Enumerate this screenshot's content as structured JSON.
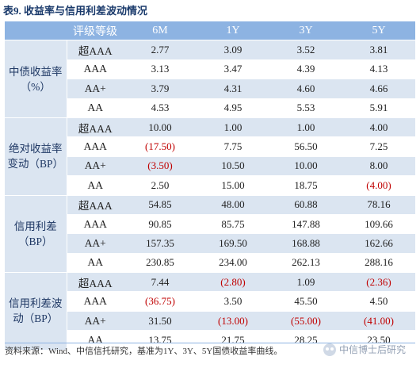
{
  "title": "表9. 收益率与信用利差波动情况",
  "header": {
    "level_col": "评级等级",
    "terms": [
      "6M",
      "1Y",
      "3Y",
      "5Y"
    ]
  },
  "groups": [
    {
      "label": "中债收益率（%）",
      "rows": [
        {
          "level": "超AAA",
          "cells": [
            {
              "v": "2.77",
              "neg": false
            },
            {
              "v": "3.09",
              "neg": false
            },
            {
              "v": "3.52",
              "neg": false
            },
            {
              "v": "3.81",
              "neg": false
            }
          ]
        },
        {
          "level": "AAA",
          "cells": [
            {
              "v": "3.13",
              "neg": false
            },
            {
              "v": "3.47",
              "neg": false
            },
            {
              "v": "4.39",
              "neg": false
            },
            {
              "v": "4.13",
              "neg": false
            }
          ]
        },
        {
          "level": "AA+",
          "cells": [
            {
              "v": "3.79",
              "neg": false
            },
            {
              "v": "4.31",
              "neg": false
            },
            {
              "v": "4.60",
              "neg": false
            },
            {
              "v": "4.66",
              "neg": false
            }
          ]
        },
        {
          "level": "AA",
          "cells": [
            {
              "v": "4.53",
              "neg": false
            },
            {
              "v": "4.95",
              "neg": false
            },
            {
              "v": "5.53",
              "neg": false
            },
            {
              "v": "5.91",
              "neg": false
            }
          ]
        }
      ]
    },
    {
      "label": "绝对收益率变动（BP）",
      "rows": [
        {
          "level": "超AAA",
          "cells": [
            {
              "v": "10.00",
              "neg": false
            },
            {
              "v": "1.00",
              "neg": false
            },
            {
              "v": "1.00",
              "neg": false
            },
            {
              "v": "4.00",
              "neg": false
            }
          ]
        },
        {
          "level": "AAA",
          "cells": [
            {
              "v": "(17.50)",
              "neg": true
            },
            {
              "v": "7.75",
              "neg": false
            },
            {
              "v": "56.50",
              "neg": false
            },
            {
              "v": "7.25",
              "neg": false
            }
          ]
        },
        {
          "level": "AA+",
          "cells": [
            {
              "v": "(3.50)",
              "neg": true
            },
            {
              "v": "10.50",
              "neg": false
            },
            {
              "v": "10.00",
              "neg": false
            },
            {
              "v": "8.00",
              "neg": false
            }
          ]
        },
        {
          "level": "AA",
          "cells": [
            {
              "v": "2.50",
              "neg": false
            },
            {
              "v": "15.00",
              "neg": false
            },
            {
              "v": "18.75",
              "neg": false
            },
            {
              "v": "(4.00)",
              "neg": true
            }
          ]
        }
      ]
    },
    {
      "label": "信用利差（BP）",
      "rows": [
        {
          "level": "超AAA",
          "cells": [
            {
              "v": "54.85",
              "neg": false
            },
            {
              "v": "48.00",
              "neg": false
            },
            {
              "v": "60.88",
              "neg": false
            },
            {
              "v": "78.16",
              "neg": false
            }
          ]
        },
        {
          "level": "AAA",
          "cells": [
            {
              "v": "90.85",
              "neg": false
            },
            {
              "v": "85.75",
              "neg": false
            },
            {
              "v": "147.88",
              "neg": false
            },
            {
              "v": "109.66",
              "neg": false
            }
          ]
        },
        {
          "level": "AA+",
          "cells": [
            {
              "v": "157.35",
              "neg": false
            },
            {
              "v": "169.50",
              "neg": false
            },
            {
              "v": "168.88",
              "neg": false
            },
            {
              "v": "162.66",
              "neg": false
            }
          ]
        },
        {
          "level": "AA",
          "cells": [
            {
              "v": "230.85",
              "neg": false
            },
            {
              "v": "234.00",
              "neg": false
            },
            {
              "v": "262.13",
              "neg": false
            },
            {
              "v": "288.16",
              "neg": false
            }
          ]
        }
      ]
    },
    {
      "label": "信用利差波动（BP）",
      "rows": [
        {
          "level": "超AAA",
          "cells": [
            {
              "v": "7.44",
              "neg": false
            },
            {
              "v": "(2.80)",
              "neg": true
            },
            {
              "v": "1.09",
              "neg": false
            },
            {
              "v": "(2.36)",
              "neg": true
            }
          ]
        },
        {
          "level": "AAA",
          "cells": [
            {
              "v": "(36.75)",
              "neg": true
            },
            {
              "v": "3.50",
              "neg": false
            },
            {
              "v": "45.50",
              "neg": false
            },
            {
              "v": "4.50",
              "neg": false
            }
          ]
        },
        {
          "level": "AA+",
          "cells": [
            {
              "v": "31.50",
              "neg": false
            },
            {
              "v": "(13.00)",
              "neg": true
            },
            {
              "v": "(55.00)",
              "neg": true
            },
            {
              "v": "(41.00)",
              "neg": true
            }
          ]
        },
        {
          "level": "AA",
          "cells": [
            {
              "v": "13.75",
              "neg": false
            },
            {
              "v": "21.75",
              "neg": false
            },
            {
              "v": "28.25",
              "neg": false
            },
            {
              "v": "23.50",
              "neg": false
            }
          ]
        }
      ]
    }
  ],
  "footer": "资料来源：Wind、中信信托研究，基准为1Y、3Y、5Y国债收益率曲线。",
  "watermark": {
    "text": "中信博士后研究",
    "icon": "wechat-icon"
  },
  "colors": {
    "header_bg": "#8db3e2",
    "shade_bg": "#dbe5f1",
    "negative": "#c00000",
    "title": "#1a3a6b"
  }
}
